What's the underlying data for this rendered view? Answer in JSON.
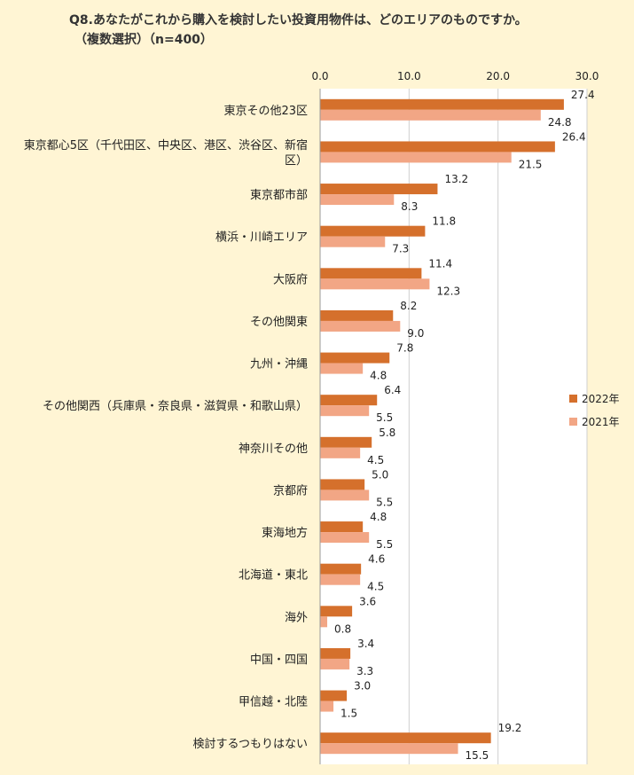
{
  "title_line1": "Q8.あなたがこれから購入を検討したい投資用物件は、どのエリアのものですか。",
  "title_line2": "（複数選択）（n=400）",
  "chart_data": {
    "type": "bar",
    "orientation": "horizontal",
    "xlim": [
      0,
      30
    ],
    "xticks": [
      "0.0",
      "10.0",
      "20.0",
      "30.0"
    ],
    "grid": true,
    "legend_position": "right",
    "categories": [
      "東京その他23区",
      "東京都心5区（千代田区、中央区、港区、渋谷区、新宿区）",
      "東京都市部",
      "横浜・川崎エリア",
      "大阪府",
      "その他関東",
      "九州・沖縄",
      "その他関西（兵庫県・奈良県・滋賀県・和歌山県）",
      "神奈川その他",
      "京都府",
      "東海地方",
      "北海道・東北",
      "海外",
      "中国・四国",
      "甲信越・北陸",
      "検討するつもりはない"
    ],
    "category_lines": [
      [
        "東京その他23区"
      ],
      [
        "東京都心5区（千代田区、中央区、港区、渋谷区、新宿",
        "区）"
      ],
      [
        "東京都市部"
      ],
      [
        "横浜・川崎エリア"
      ],
      [
        "大阪府"
      ],
      [
        "その他関東"
      ],
      [
        "九州・沖縄"
      ],
      [
        "その他関西（兵庫県・奈良県・滋賀県・和歌山県）"
      ],
      [
        "神奈川その他"
      ],
      [
        "京都府"
      ],
      [
        "東海地方"
      ],
      [
        "北海道・東北"
      ],
      [
        "海外"
      ],
      [
        "中国・四国"
      ],
      [
        "甲信越・北陸"
      ],
      [
        "検討するつもりはない"
      ]
    ],
    "series": [
      {
        "name": "2022年",
        "color": "#d5702c",
        "values": [
          27.4,
          26.4,
          13.2,
          11.8,
          11.4,
          8.2,
          7.8,
          6.4,
          5.8,
          5.0,
          4.8,
          4.6,
          3.6,
          3.4,
          3.0,
          19.2
        ],
        "labels": [
          "27.4",
          "26.4",
          "13.2",
          "11.8",
          "11.4",
          "8.2",
          "7.8",
          "6.4",
          "5.8",
          "5.0",
          "4.8",
          "4.6",
          "3.6",
          "3.4",
          "3.0",
          "19.2"
        ]
      },
      {
        "name": "2021年",
        "color": "#f2a685",
        "values": [
          24.8,
          21.5,
          8.3,
          7.3,
          12.3,
          9.0,
          4.8,
          5.5,
          4.5,
          5.5,
          5.5,
          4.5,
          0.8,
          3.3,
          1.5,
          15.5
        ],
        "labels": [
          "24.8",
          "21.5",
          "8.3",
          "7.3",
          "12.3",
          "9.0",
          "4.8",
          "5.5",
          "4.5",
          "5.5",
          "5.5",
          "4.5",
          "0.8",
          "3.3",
          "1.5",
          "15.5"
        ]
      }
    ]
  }
}
